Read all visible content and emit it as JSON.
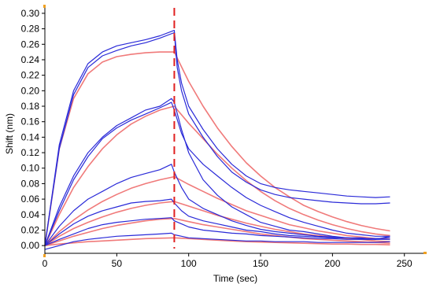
{
  "chart_data": {
    "type": "line",
    "title": "",
    "xlabel": "Time (sec)",
    "ylabel": "Shift (nm)",
    "xlim": [
      0,
      260
    ],
    "ylim": [
      -0.01,
      0.305
    ],
    "x_ticks": [
      0,
      50,
      100,
      150,
      200,
      250
    ],
    "y_ticks": [
      0.0,
      0.02,
      0.04,
      0.06,
      0.08,
      0.1,
      0.12,
      0.14,
      0.16,
      0.18,
      0.2,
      0.22,
      0.24,
      0.26,
      0.28,
      0.3
    ],
    "y_tick_labels": [
      "0.00",
      "0.02",
      "0.04",
      "0.06",
      "0.08",
      "0.10",
      "0.12",
      "0.14",
      "0.16",
      "0.18",
      "0.20",
      "0.22",
      "0.24",
      "0.26",
      "0.28",
      "0.30"
    ],
    "grid": false,
    "legend": "none",
    "annotation": {
      "type": "vertical-dashed-line",
      "x": 90,
      "color": "#e02020"
    },
    "colors": {
      "measured": "#2a2ad8",
      "fit": "#f07a7a",
      "axis_ticks": "#f0a020"
    },
    "association_end": 90,
    "series": [
      {
        "role": "measured",
        "x": [
          0,
          10,
          20,
          30,
          40,
          50,
          60,
          70,
          80,
          90,
          92,
          95,
          100,
          110,
          120,
          130,
          140,
          150,
          160,
          170,
          180,
          190,
          200,
          210,
          220,
          230,
          240
        ],
        "y": [
          0.0,
          0.13,
          0.2,
          0.235,
          0.25,
          0.258,
          0.262,
          0.266,
          0.271,
          0.278,
          0.24,
          0.21,
          0.18,
          0.15,
          0.125,
          0.105,
          0.09,
          0.08,
          0.075,
          0.072,
          0.07,
          0.068,
          0.066,
          0.064,
          0.063,
          0.062,
          0.063
        ]
      },
      {
        "role": "measured",
        "x": [
          0,
          10,
          20,
          30,
          40,
          50,
          60,
          70,
          80,
          90,
          92,
          95,
          100,
          110,
          120,
          130,
          140,
          150,
          160,
          170,
          180,
          190,
          200,
          210,
          220,
          230,
          240
        ],
        "y": [
          0.0,
          0.125,
          0.195,
          0.23,
          0.245,
          0.252,
          0.258,
          0.262,
          0.268,
          0.275,
          0.23,
          0.2,
          0.17,
          0.14,
          0.115,
          0.095,
          0.082,
          0.072,
          0.066,
          0.062,
          0.06,
          0.058,
          0.056,
          0.055,
          0.054,
          0.054,
          0.055
        ]
      },
      {
        "role": "fit",
        "x": [
          0,
          10,
          20,
          30,
          40,
          50,
          60,
          70,
          80,
          90,
          100,
          110,
          120,
          130,
          140,
          150,
          160,
          170,
          180,
          190,
          200,
          210,
          220,
          230,
          240
        ],
        "y": [
          0.0,
          0.125,
          0.19,
          0.222,
          0.237,
          0.244,
          0.247,
          0.249,
          0.25,
          0.25,
          0.212,
          0.18,
          0.152,
          0.128,
          0.107,
          0.09,
          0.075,
          0.063,
          0.052,
          0.044,
          0.037,
          0.031,
          0.026,
          0.022,
          0.019
        ]
      },
      {
        "role": "fit",
        "x": [
          0,
          10,
          20,
          30,
          40,
          50,
          60,
          70,
          80,
          90,
          100,
          110,
          120,
          130,
          140,
          150,
          160,
          170,
          180,
          190,
          200,
          210,
          220,
          230,
          240
        ],
        "y": [
          0.0,
          0.04,
          0.075,
          0.102,
          0.125,
          0.143,
          0.157,
          0.167,
          0.175,
          0.18,
          0.158,
          0.138,
          0.118,
          0.1,
          0.084,
          0.07,
          0.058,
          0.048,
          0.04,
          0.033,
          0.027,
          0.022,
          0.018,
          0.015,
          0.013
        ]
      },
      {
        "role": "measured",
        "x": [
          0,
          10,
          20,
          30,
          40,
          50,
          60,
          70,
          80,
          88,
          90,
          95,
          100,
          110,
          120,
          130,
          140,
          150,
          160,
          170,
          180,
          190,
          200,
          210,
          220,
          230,
          240
        ],
        "y": [
          0.0,
          0.05,
          0.09,
          0.12,
          0.14,
          0.155,
          0.165,
          0.175,
          0.18,
          0.19,
          0.185,
          0.15,
          0.12,
          0.085,
          0.065,
          0.05,
          0.04,
          0.03,
          0.025,
          0.02,
          0.018,
          0.015,
          0.012,
          0.01,
          0.01,
          0.008,
          0.012
        ]
      },
      {
        "role": "measured",
        "x": [
          0,
          10,
          20,
          30,
          40,
          50,
          60,
          70,
          80,
          88,
          90,
          95,
          100,
          110,
          120,
          130,
          140,
          150,
          160,
          170,
          180,
          190,
          200,
          210,
          220,
          230,
          240
        ],
        "y": [
          0.0,
          0.045,
          0.085,
          0.115,
          0.138,
          0.152,
          0.162,
          0.17,
          0.178,
          0.185,
          0.175,
          0.145,
          0.125,
          0.105,
          0.09,
          0.075,
          0.062,
          0.052,
          0.044,
          0.036,
          0.03,
          0.025,
          0.02,
          0.016,
          0.014,
          0.012,
          0.012
        ]
      },
      {
        "role": "fit",
        "x": [
          0,
          10,
          20,
          30,
          40,
          50,
          60,
          70,
          80,
          90,
          100,
          110,
          120,
          130,
          140,
          150,
          160,
          170,
          180,
          190,
          200,
          210,
          220,
          230,
          240
        ],
        "y": [
          0.0,
          0.018,
          0.033,
          0.046,
          0.057,
          0.066,
          0.074,
          0.08,
          0.085,
          0.089,
          0.079,
          0.07,
          0.061,
          0.053,
          0.045,
          0.039,
          0.033,
          0.027,
          0.023,
          0.019,
          0.016,
          0.013,
          0.011,
          0.009,
          0.008
        ]
      },
      {
        "role": "measured",
        "x": [
          0,
          10,
          20,
          30,
          40,
          50,
          60,
          70,
          80,
          88,
          90,
          95,
          100,
          110,
          120,
          130,
          140,
          150,
          160,
          170,
          180,
          190,
          200,
          210,
          220,
          230,
          240
        ],
        "y": [
          0.0,
          0.025,
          0.045,
          0.06,
          0.07,
          0.08,
          0.088,
          0.093,
          0.098,
          0.105,
          0.095,
          0.075,
          0.06,
          0.048,
          0.04,
          0.032,
          0.026,
          0.021,
          0.018,
          0.016,
          0.014,
          0.012,
          0.011,
          0.01,
          0.009,
          0.009,
          0.01
        ]
      },
      {
        "role": "fit",
        "x": [
          0,
          10,
          20,
          30,
          40,
          50,
          60,
          70,
          80,
          90,
          100,
          110,
          120,
          130,
          140,
          150,
          160,
          170,
          180,
          190,
          200,
          210,
          220,
          230,
          240
        ],
        "y": [
          0.0,
          0.012,
          0.022,
          0.03,
          0.037,
          0.043,
          0.048,
          0.052,
          0.055,
          0.057,
          0.051,
          0.045,
          0.039,
          0.034,
          0.029,
          0.025,
          0.021,
          0.018,
          0.015,
          0.013,
          0.011,
          0.009,
          0.008,
          0.006,
          0.005
        ]
      },
      {
        "role": "measured",
        "x": [
          0,
          10,
          20,
          30,
          40,
          50,
          60,
          70,
          80,
          88,
          90,
          95,
          100,
          110,
          120,
          130,
          140,
          150,
          160,
          170,
          180,
          190,
          200,
          210,
          220,
          230,
          240
        ],
        "y": [
          0.0,
          0.015,
          0.028,
          0.038,
          0.045,
          0.05,
          0.055,
          0.057,
          0.058,
          0.06,
          0.055,
          0.045,
          0.038,
          0.032,
          0.028,
          0.024,
          0.02,
          0.018,
          0.015,
          0.013,
          0.012,
          0.011,
          0.01,
          0.01,
          0.009,
          0.009,
          0.01
        ]
      },
      {
        "role": "fit",
        "x": [
          0,
          10,
          20,
          30,
          40,
          50,
          60,
          70,
          80,
          90,
          100,
          110,
          120,
          130,
          140,
          150,
          160,
          170,
          180,
          190,
          200,
          210,
          220,
          230,
          240
        ],
        "y": [
          0.0,
          0.006,
          0.012,
          0.017,
          0.022,
          0.026,
          0.029,
          0.032,
          0.034,
          0.035,
          0.031,
          0.027,
          0.024,
          0.021,
          0.018,
          0.015,
          0.013,
          0.011,
          0.009,
          0.008,
          0.007,
          0.006,
          0.005,
          0.004,
          0.003
        ]
      },
      {
        "role": "measured",
        "x": [
          0,
          10,
          20,
          30,
          40,
          50,
          60,
          70,
          80,
          88,
          90,
          95,
          100,
          110,
          120,
          130,
          140,
          150,
          160,
          170,
          180,
          190,
          200,
          210,
          220,
          230,
          240
        ],
        "y": [
          0.0,
          0.008,
          0.015,
          0.022,
          0.027,
          0.03,
          0.032,
          0.034,
          0.035,
          0.036,
          0.032,
          0.028,
          0.024,
          0.02,
          0.018,
          0.016,
          0.015,
          0.013,
          0.012,
          0.011,
          0.01,
          0.009,
          0.009,
          0.008,
          0.008,
          0.008,
          0.008
        ]
      },
      {
        "role": "fit",
        "x": [
          0,
          10,
          20,
          30,
          40,
          50,
          60,
          70,
          80,
          90,
          100,
          110,
          120,
          130,
          140,
          150,
          160,
          170,
          180,
          190,
          200,
          210,
          220,
          230,
          240
        ],
        "y": [
          0.0,
          0.002,
          0.0035,
          0.005,
          0.006,
          0.007,
          0.008,
          0.009,
          0.0095,
          0.01,
          0.009,
          0.008,
          0.007,
          0.006,
          0.005,
          0.0045,
          0.004,
          0.0035,
          0.003,
          0.0025,
          0.002,
          0.002,
          0.0015,
          0.0015,
          0.001
        ]
      },
      {
        "role": "measured",
        "x": [
          0,
          10,
          20,
          30,
          40,
          50,
          60,
          70,
          80,
          88,
          90,
          95,
          100,
          110,
          120,
          130,
          140,
          150,
          160,
          170,
          180,
          190,
          200,
          210,
          220,
          230,
          240
        ],
        "y": [
          -0.005,
          0.0,
          0.005,
          0.008,
          0.01,
          0.012,
          0.013,
          0.014,
          0.015,
          0.016,
          0.014,
          0.012,
          0.01,
          0.009,
          0.008,
          0.007,
          0.006,
          0.006,
          0.005,
          0.005,
          0.005,
          0.004,
          0.004,
          0.004,
          0.004,
          0.004,
          0.005
        ]
      }
    ]
  }
}
